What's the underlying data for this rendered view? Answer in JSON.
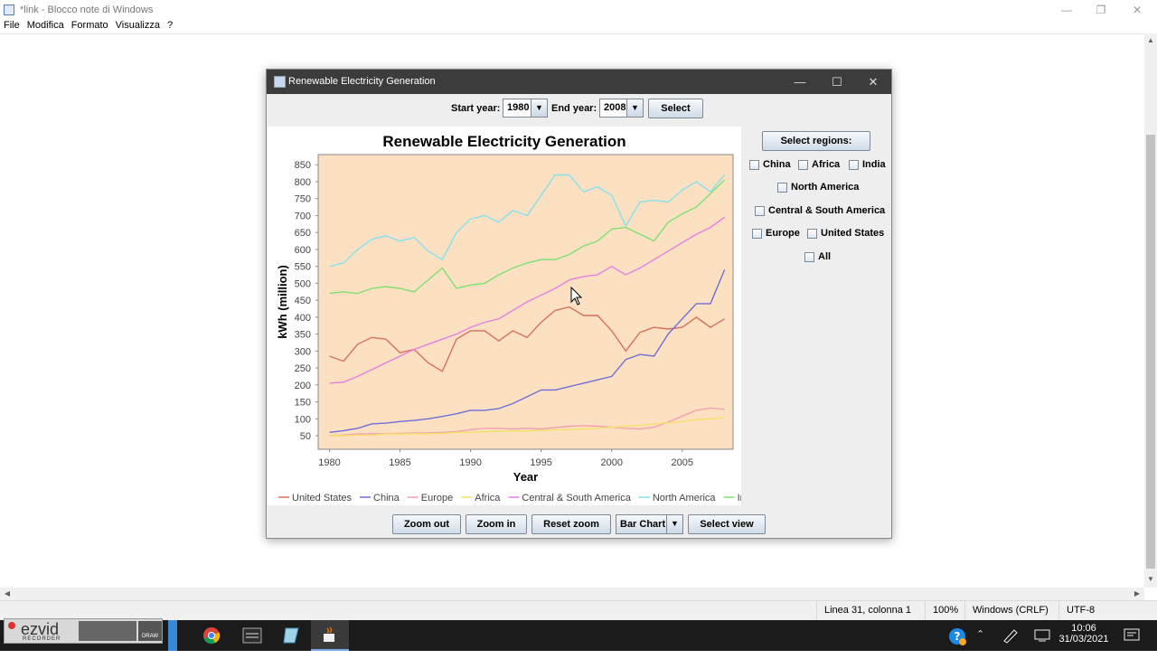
{
  "notepad": {
    "title": "*link - Blocco note di Windows",
    "menu": [
      "File",
      "Modifica",
      "Formato",
      "Visualizza",
      "?"
    ],
    "status": {
      "position": "Linea 31, colonna 1",
      "zoom": "100%",
      "line_ending": "Windows (CRLF)",
      "encoding": "UTF-8"
    }
  },
  "app": {
    "title": "Renewable Electricity Generation",
    "start_year_label": "Start year:",
    "start_year_value": "1980",
    "end_year_label": "End year:",
    "end_year_value": "2008",
    "select_button": "Select",
    "select_regions_button": "Select regions:",
    "regions": {
      "china": "China",
      "africa": "Africa",
      "india": "India",
      "north_america": "North America",
      "central_south_america": "Central & South America",
      "europe": "Europe",
      "united_states": "United States",
      "all": "All"
    },
    "bottom_buttons": {
      "zoom_out": "Zoom out",
      "zoom_in": "Zoom in",
      "reset_zoom": "Reset zoom",
      "chart_type": "Bar Chart",
      "select_view": "Select view"
    }
  },
  "chart_data": {
    "type": "line",
    "title": "Renewable Electricity Generation",
    "xlabel": "Year",
    "ylabel": "kWh (million)",
    "xlim": [
      1979.2,
      2008.6
    ],
    "ylim": [
      10,
      880
    ],
    "x_ticks": [
      1980,
      1985,
      1990,
      1995,
      2000,
      2005
    ],
    "y_ticks": [
      50,
      100,
      150,
      200,
      250,
      300,
      350,
      400,
      450,
      500,
      550,
      600,
      650,
      700,
      750,
      800,
      850
    ],
    "plot_background": "#fbe1c2",
    "x": [
      1980,
      1981,
      1982,
      1983,
      1984,
      1985,
      1986,
      1987,
      1988,
      1989,
      1990,
      1991,
      1992,
      1993,
      1994,
      1995,
      1996,
      1997,
      1998,
      1999,
      2000,
      2001,
      2002,
      2003,
      2004,
      2005,
      2006,
      2007,
      2008
    ],
    "series": [
      {
        "name": "United States",
        "color": "#d9705c",
        "values": [
          285,
          270,
          320,
          340,
          335,
          295,
          305,
          265,
          240,
          335,
          360,
          360,
          330,
          360,
          340,
          385,
          420,
          430,
          405,
          405,
          360,
          300,
          355,
          370,
          365,
          370,
          400,
          370,
          395
        ]
      },
      {
        "name": "China",
        "color": "#6e6ed9",
        "values": [
          60,
          65,
          72,
          85,
          87,
          92,
          95,
          100,
          107,
          115,
          125,
          125,
          130,
          145,
          165,
          185,
          185,
          195,
          205,
          215,
          225,
          275,
          290,
          285,
          350,
          395,
          440,
          440,
          540
        ]
      },
      {
        "name": "Europe",
        "color": "#f2a0b0",
        "values": [
          50,
          52,
          55,
          56,
          56,
          57,
          58,
          58,
          60,
          62,
          68,
          72,
          72,
          70,
          72,
          70,
          74,
          78,
          80,
          78,
          75,
          72,
          70,
          75,
          90,
          108,
          125,
          132,
          128
        ]
      },
      {
        "name": "Africa",
        "color": "#f5e06a",
        "values": [
          50,
          50,
          52,
          52,
          55,
          55,
          56,
          56,
          57,
          60,
          60,
          62,
          63,
          64,
          64,
          66,
          67,
          68,
          70,
          72,
          75,
          78,
          80,
          85,
          88,
          92,
          98,
          100,
          105
        ]
      },
      {
        "name": "Central & South America",
        "color": "#e67fe0",
        "values": [
          205,
          208,
          225,
          245,
          265,
          285,
          305,
          320,
          335,
          350,
          370,
          385,
          395,
          420,
          445,
          465,
          485,
          510,
          520,
          525,
          550,
          525,
          545,
          570,
          595,
          620,
          645,
          665,
          695
        ]
      },
      {
        "name": "North America",
        "color": "#88e0ec",
        "values": [
          550,
          560,
          600,
          630,
          640,
          625,
          635,
          595,
          570,
          650,
          690,
          700,
          680,
          715,
          700,
          760,
          820,
          820,
          770,
          785,
          760,
          670,
          740,
          745,
          740,
          775,
          800,
          770,
          820
        ]
      },
      {
        "name": "India",
        "color": "#7fe070",
        "values": [
          470,
          475,
          470,
          485,
          490,
          485,
          475,
          510,
          545,
          485,
          495,
          500,
          525,
          545,
          560,
          570,
          570,
          585,
          610,
          625,
          660,
          665,
          645,
          625,
          680,
          705,
          725,
          765,
          805
        ]
      }
    ]
  },
  "taskbar": {
    "ezvid_logo": "ezvid",
    "ezvid_sub": "RECORDER",
    "draw": "DRAW",
    "time": "10:06",
    "date": "31/03/2021"
  }
}
